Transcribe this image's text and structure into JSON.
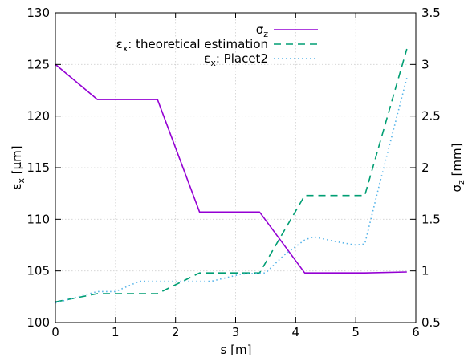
{
  "chart_data": {
    "type": "line",
    "xlabel": "s [m]",
    "ylabel": {
      "base": "ε",
      "sub": "x",
      "rest": " [μm]"
    },
    "y2label": {
      "base": "σ",
      "sub": "z",
      "rest": " [mm]"
    },
    "xlim": [
      0,
      6
    ],
    "ylim": [
      100,
      130
    ],
    "y2lim": [
      0.5,
      3.5
    ],
    "xticks": [
      "0",
      "1",
      "2",
      "3",
      "4",
      "5",
      "6"
    ],
    "yticks": [
      "100",
      "105",
      "110",
      "115",
      "120",
      "125",
      "130"
    ],
    "y2ticks": [
      "0.5",
      "1",
      "1.5",
      "2",
      "2.5",
      "3",
      "3.5"
    ],
    "grid": true,
    "legend_position": "top-right",
    "series": [
      {
        "name": "σz",
        "name_parts": {
          "base": "σ",
          "sub": "z",
          "rest": ""
        },
        "axis": "right",
        "color": "#9400d3",
        "dash": "solid",
        "x": [
          0,
          0.7,
          1.7,
          2.4,
          3.4,
          4.15,
          5.15,
          5.85
        ],
        "y": [
          3.0,
          2.66,
          2.66,
          1.57,
          1.57,
          0.98,
          0.98,
          0.99
        ]
      },
      {
        "name": "εx: theoretical estimation",
        "name_parts": {
          "base": "ε",
          "sub": "x",
          "rest": ": theoretical estimation"
        },
        "axis": "left",
        "color": "#009e73",
        "dash": "dashed",
        "x": [
          0,
          0.7,
          1.7,
          2.4,
          3.4,
          4.15,
          5.15,
          5.85
        ],
        "y": [
          102.0,
          102.8,
          102.8,
          104.8,
          104.8,
          112.3,
          112.3,
          126.5
        ]
      },
      {
        "name": "εx: Placet2",
        "name_parts": {
          "base": "ε",
          "sub": "x",
          "rest": ": Placet2"
        },
        "axis": "left",
        "color": "#56b4e9",
        "dash": "dotted",
        "x": [
          0,
          0.7,
          1.0,
          1.4,
          2.4,
          2.6,
          3.1,
          3.5,
          3.8,
          4.15,
          4.3,
          4.7,
          5.0,
          5.15,
          5.4,
          5.85
        ],
        "y": [
          101.9,
          103.0,
          103.0,
          104.0,
          104.0,
          104.0,
          104.7,
          104.8,
          106.5,
          108.0,
          108.3,
          107.8,
          107.5,
          107.6,
          113.5,
          123.7
        ]
      }
    ]
  }
}
